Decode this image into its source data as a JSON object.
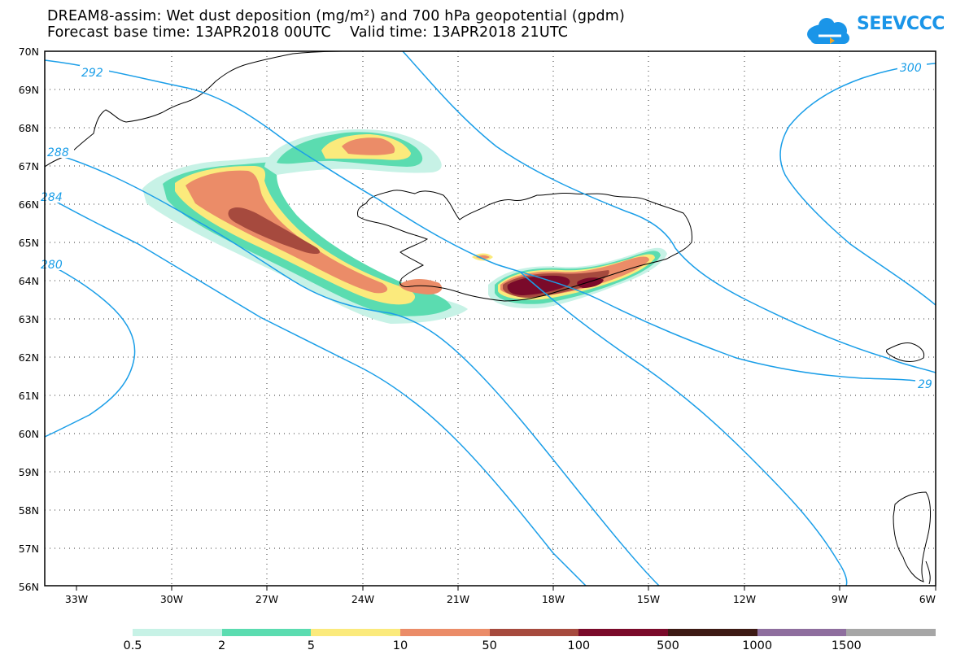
{
  "header": {
    "title_line1": "DREAM8-assim: Wet dust deposition (mg/m²) and 700 hPa geopotential (gpdm)",
    "base_time_label": "Forecast base time: 13APR2018 00UTC",
    "valid_time_label": "Valid time: 13APR2018 21UTC"
  },
  "logo": {
    "text": "SEEVCCC",
    "icon": "cloud-arrow-icon",
    "color": "#1a95e8"
  },
  "map": {
    "lat_labels": [
      "70N",
      "69N",
      "68N",
      "67N",
      "66N",
      "65N",
      "64N",
      "63N",
      "62N",
      "61N",
      "60N",
      "59N",
      "58N",
      "57N",
      "56N"
    ],
    "lon_labels": [
      "33W",
      "30W",
      "27W",
      "24W",
      "21W",
      "18W",
      "15W",
      "12W",
      "9W",
      "6W"
    ],
    "lat_range": [
      56,
      70
    ],
    "lon_range": [
      -34.5,
      -6
    ],
    "contour_color": "#1a9ee8",
    "contour_labels": [
      "292",
      "288",
      "284",
      "280",
      "300",
      "29"
    ],
    "grid": "dotted"
  },
  "legend": {
    "colors": [
      "#c7f2e6",
      "#5bdcb0",
      "#fbea7c",
      "#eb8c68",
      "#a64a3e",
      "#7a0a2a",
      "#3d1a14",
      "#8e6e9e",
      "#a6a6a6"
    ],
    "labels": [
      "0.5",
      "2",
      "5",
      "10",
      "50",
      "100",
      "500",
      "1000",
      "1500"
    ]
  }
}
